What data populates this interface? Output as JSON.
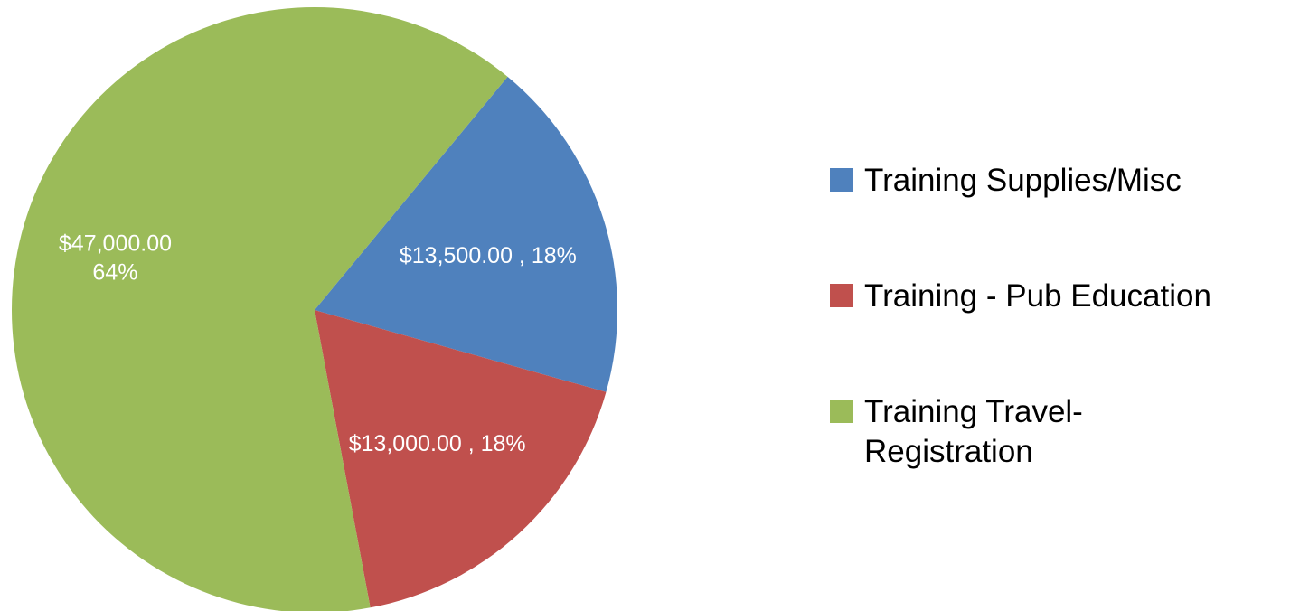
{
  "chart_data": {
    "type": "pie",
    "categories": [
      "Training Supplies/Misc",
      "Training - Pub Education",
      "Training Travel-Registration"
    ],
    "values": [
      13500,
      13000,
      47000
    ],
    "value_labels": [
      "$13,500.00 , 18%",
      "$13,000.00 , 18%",
      "$47,000.00\n64%"
    ],
    "colors": [
      "#4f81bd",
      "#c0504d",
      "#9bbb59"
    ],
    "legend": "right"
  }
}
